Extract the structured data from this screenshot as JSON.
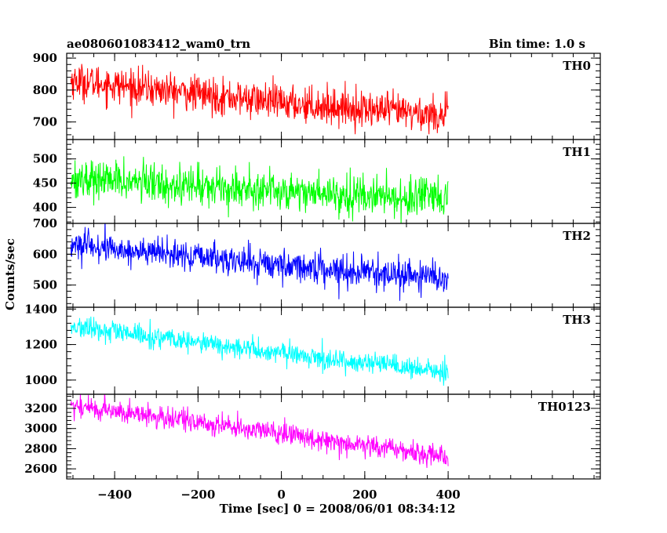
{
  "chart_data": {
    "type": "line",
    "title": "ae080601083412_wam0_trn",
    "bin_time": "Bin time: 1.0 s",
    "xlabel": "Time [sec] 0 = 2008/06/01 08:34:12",
    "ylabel": "Counts/sec",
    "xlim": [
      -515,
      765
    ],
    "x_ticks": [
      -400,
      -200,
      0,
      200,
      400
    ],
    "x_data_range": [
      -505,
      400
    ],
    "grid": false,
    "panels": [
      {
        "name": "TH0",
        "color": "#ff0000",
        "ylim": [
          645,
          915
        ],
        "y_ticks": [
          700,
          800,
          900
        ],
        "trend": {
          "x": [
            -505,
            0,
            400
          ],
          "y": [
            830,
            760,
            720
          ]
        },
        "noise_sd": 28
      },
      {
        "name": "TH1",
        "color": "#00ff00",
        "ylim": [
          367,
          540
        ],
        "y_ticks": [
          400,
          450,
          500
        ],
        "trend": {
          "x": [
            -505,
            0,
            400
          ],
          "y": [
            460,
            435,
            415
          ]
        },
        "noise_sd": 20
      },
      {
        "name": "TH2",
        "color": "#0000ff",
        "ylim": [
          428,
          700
        ],
        "y_ticks": [
          500,
          600,
          700
        ],
        "trend": {
          "x": [
            -505,
            0,
            400
          ],
          "y": [
            630,
            565,
            520
          ]
        },
        "noise_sd": 24
      },
      {
        "name": "TH3",
        "color": "#00ffff",
        "ylim": [
          920,
          1410
        ],
        "y_ticks": [
          1000,
          1200,
          1400
        ],
        "trend": {
          "x": [
            -505,
            0,
            400
          ],
          "y": [
            1300,
            1150,
            1040
          ]
        },
        "noise_sd": 30
      },
      {
        "name": "TH0123",
        "color": "#ff00ff",
        "ylim": [
          2500,
          3340
        ],
        "y_ticks": [
          2600,
          2800,
          3000,
          3200
        ],
        "trend": {
          "x": [
            -505,
            0,
            400
          ],
          "y": [
            3230,
            2950,
            2720
          ]
        },
        "noise_sd": 55
      }
    ]
  }
}
